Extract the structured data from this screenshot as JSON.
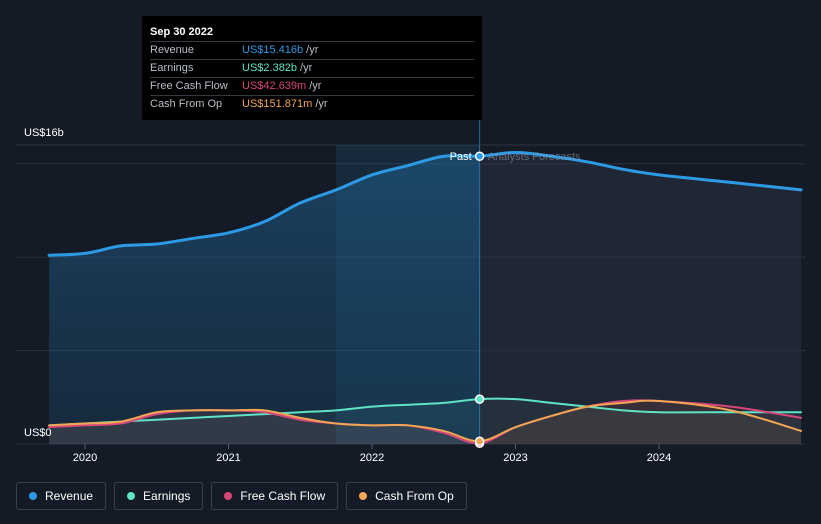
{
  "tooltip": {
    "date": "Sep 30 2022",
    "rows": [
      {
        "label": "Revenue",
        "value": "US$15.416b",
        "unit": "/yr",
        "color": "#2d9ae6"
      },
      {
        "label": "Earnings",
        "value": "US$2.382b",
        "unit": "/yr",
        "color": "#5fe3c5"
      },
      {
        "label": "Free Cash Flow",
        "value": "US$42.639m",
        "unit": "/yr",
        "color": "#d9467c"
      },
      {
        "label": "Cash From Op",
        "value": "US$151.871m",
        "unit": "/yr",
        "color": "#f0a653"
      }
    ]
  },
  "labels": {
    "past": "Past",
    "forecast": "Analysts Forecasts"
  },
  "legend": [
    {
      "label": "Revenue",
      "color": "#2d9ae6"
    },
    {
      "label": "Earnings",
      "color": "#5fe3c5"
    },
    {
      "label": "Free Cash Flow",
      "color": "#d9467c"
    },
    {
      "label": "Cash From Op",
      "color": "#f0a653"
    }
  ],
  "chart_data": {
    "type": "line",
    "y_tick_labels": [
      "US$16b",
      "US$0"
    ],
    "x_tick_labels": [
      "2020",
      "2021",
      "2022",
      "2023",
      "2024"
    ],
    "xlim": [
      2019.75,
      2024.99
    ],
    "ylim": [
      0,
      16
    ],
    "past_end_x": 2022.75,
    "highlight_start_x": 2021.75,
    "y_gridlines": [
      0,
      5,
      10,
      15,
      16
    ],
    "series": [
      {
        "name": "Revenue",
        "color": "#2d9ae6",
        "points": [
          [
            2019.75,
            10.1
          ],
          [
            2020.0,
            10.2
          ],
          [
            2020.25,
            10.6
          ],
          [
            2020.5,
            10.7
          ],
          [
            2020.75,
            11.0
          ],
          [
            2021.0,
            11.3
          ],
          [
            2021.25,
            11.9
          ],
          [
            2021.5,
            12.9
          ],
          [
            2021.75,
            13.6
          ],
          [
            2022.0,
            14.4
          ],
          [
            2022.25,
            14.9
          ],
          [
            2022.5,
            15.4
          ],
          [
            2022.75,
            15.4
          ],
          [
            2023.0,
            15.6
          ],
          [
            2023.25,
            15.4
          ],
          [
            2023.5,
            15.1
          ],
          [
            2023.75,
            14.7
          ],
          [
            2024.0,
            14.4
          ],
          [
            2024.5,
            14.0
          ],
          [
            2024.99,
            13.6
          ]
        ]
      },
      {
        "name": "Earnings",
        "color": "#5fe3c5",
        "points": [
          [
            2019.75,
            1.0
          ],
          [
            2020.0,
            1.1
          ],
          [
            2020.25,
            1.2
          ],
          [
            2020.5,
            1.3
          ],
          [
            2020.75,
            1.4
          ],
          [
            2021.0,
            1.5
          ],
          [
            2021.25,
            1.6
          ],
          [
            2021.5,
            1.7
          ],
          [
            2021.75,
            1.8
          ],
          [
            2022.0,
            2.0
          ],
          [
            2022.25,
            2.1
          ],
          [
            2022.5,
            2.2
          ],
          [
            2022.75,
            2.4
          ],
          [
            2023.0,
            2.4
          ],
          [
            2023.25,
            2.2
          ],
          [
            2023.5,
            2.0
          ],
          [
            2023.75,
            1.8
          ],
          [
            2024.0,
            1.7
          ],
          [
            2024.5,
            1.7
          ],
          [
            2024.99,
            1.7
          ]
        ]
      },
      {
        "name": "Free Cash Flow",
        "color": "#d9467c",
        "points": [
          [
            2019.75,
            0.9
          ],
          [
            2020.0,
            1.0
          ],
          [
            2020.25,
            1.1
          ],
          [
            2020.5,
            1.6
          ],
          [
            2020.75,
            1.8
          ],
          [
            2021.0,
            1.8
          ],
          [
            2021.25,
            1.7
          ],
          [
            2021.5,
            1.3
          ],
          [
            2021.75,
            1.1
          ],
          [
            2022.0,
            1.0
          ],
          [
            2022.25,
            1.0
          ],
          [
            2022.5,
            0.6
          ],
          [
            2022.75,
            0.04
          ],
          [
            2023.0,
            0.9
          ],
          [
            2023.25,
            1.5
          ],
          [
            2023.5,
            2.0
          ],
          [
            2023.75,
            2.3
          ],
          [
            2024.0,
            2.3
          ],
          [
            2024.5,
            2.0
          ],
          [
            2024.99,
            1.4
          ]
        ]
      },
      {
        "name": "Cash From Op",
        "color": "#f0a653",
        "points": [
          [
            2019.75,
            1.0
          ],
          [
            2020.0,
            1.1
          ],
          [
            2020.25,
            1.2
          ],
          [
            2020.5,
            1.7
          ],
          [
            2020.75,
            1.8
          ],
          [
            2021.0,
            1.8
          ],
          [
            2021.25,
            1.8
          ],
          [
            2021.5,
            1.4
          ],
          [
            2021.75,
            1.1
          ],
          [
            2022.0,
            1.0
          ],
          [
            2022.25,
            1.0
          ],
          [
            2022.5,
            0.7
          ],
          [
            2022.75,
            0.15
          ],
          [
            2023.0,
            0.9
          ],
          [
            2023.25,
            1.5
          ],
          [
            2023.5,
            2.0
          ],
          [
            2023.75,
            2.2
          ],
          [
            2024.0,
            2.3
          ],
          [
            2024.5,
            1.8
          ],
          [
            2024.99,
            0.7
          ]
        ]
      }
    ]
  }
}
